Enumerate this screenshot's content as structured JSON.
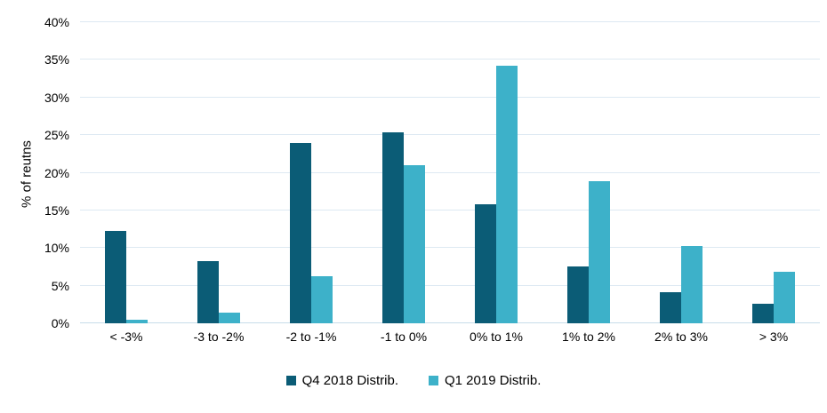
{
  "chart_data": {
    "type": "bar",
    "title": "",
    "xlabel": "",
    "ylabel": "% of reutns",
    "ylim": [
      0,
      40
    ],
    "grid": true,
    "legend_position": "bottom",
    "categories": [
      "< -3%",
      "-3 to -2%",
      "-2 to -1%",
      "-1 to 0%",
      "0% to 1%",
      "1% to 2%",
      "2% to 3%",
      "> 3%"
    ],
    "series": [
      {
        "name": "Q4 2018 Distrib.",
        "color": "#0B5C76",
        "values": [
          12.3,
          8.3,
          24.0,
          25.4,
          15.8,
          7.6,
          4.1,
          2.6
        ]
      },
      {
        "name": "Q1 2019 Distrib.",
        "color": "#3DB1C9",
        "values": [
          0.5,
          1.4,
          6.3,
          21.0,
          34.2,
          18.9,
          10.3,
          6.9
        ]
      }
    ],
    "y_ticks": [
      {
        "value": 0,
        "label": "0%"
      },
      {
        "value": 5,
        "label": "5%"
      },
      {
        "value": 10,
        "label": "10%"
      },
      {
        "value": 15,
        "label": "15%"
      },
      {
        "value": 20,
        "label": "20%"
      },
      {
        "value": 25,
        "label": "25%"
      },
      {
        "value": 30,
        "label": "30%"
      },
      {
        "value": 35,
        "label": "35%"
      },
      {
        "value": 40,
        "label": "40%"
      }
    ],
    "colors": {
      "gridline": "#DDE9F2",
      "axis_line": "#C7DCEA",
      "text": "#000000",
      "background": "#FFFFFF"
    }
  }
}
